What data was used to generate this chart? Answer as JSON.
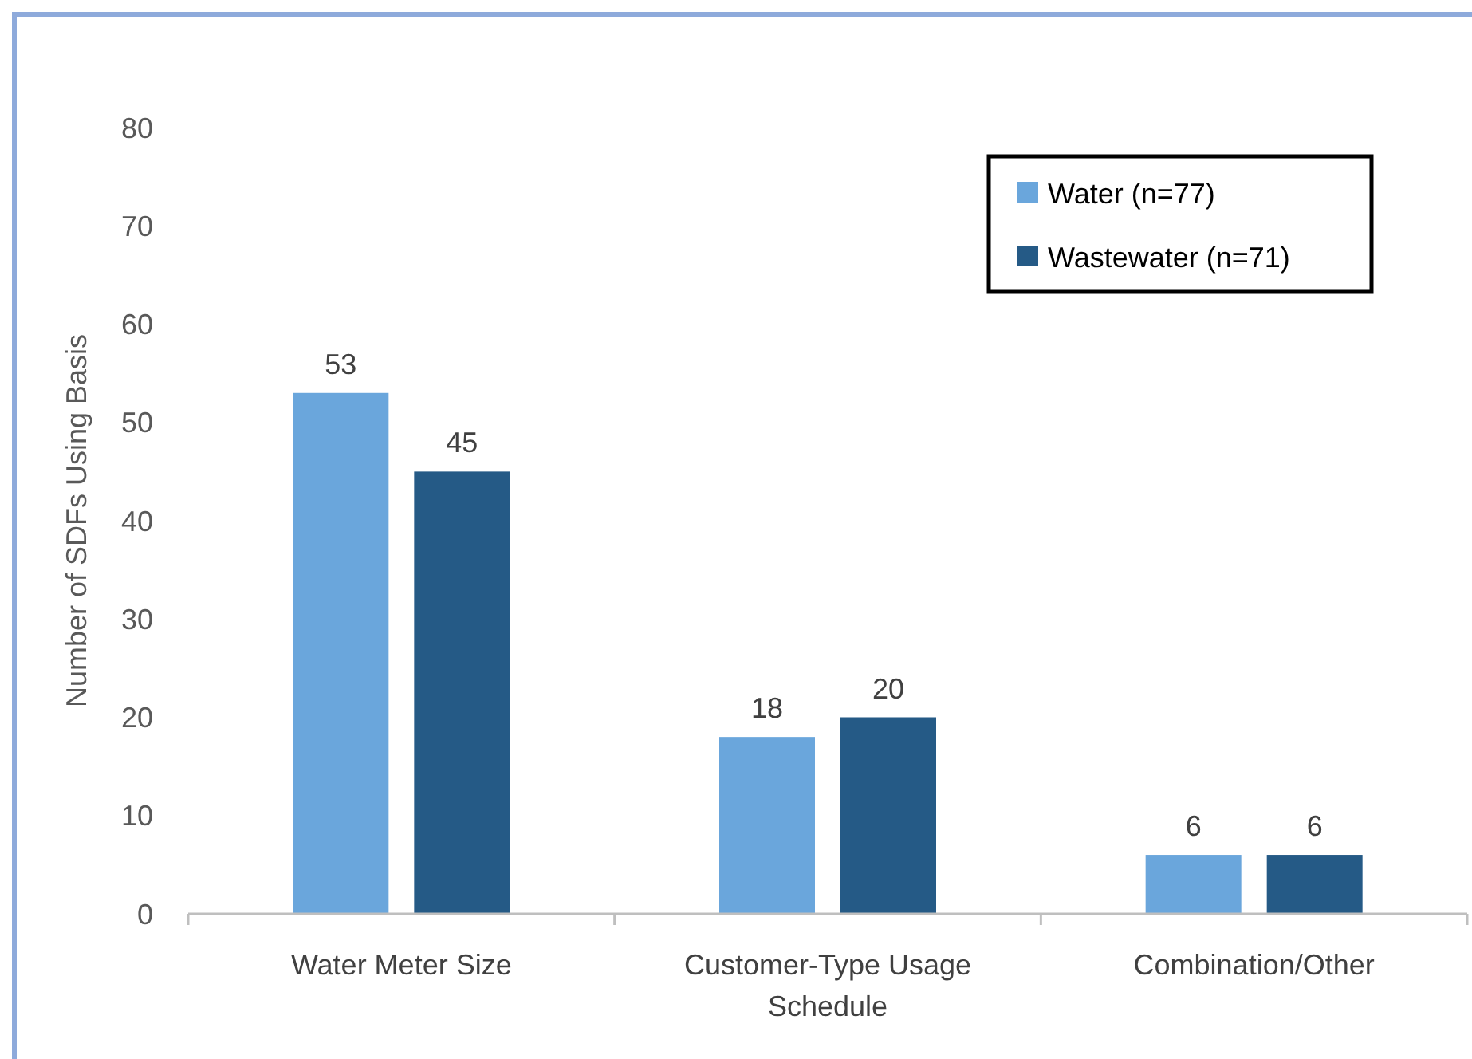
{
  "chart_data": {
    "type": "bar",
    "ylabel": "Number of SDFs Using Basis",
    "categories": [
      "Water Meter Size",
      "Customer-Type Usage Schedule",
      "Combination/Other"
    ],
    "series": [
      {
        "name": "Water (n=77)",
        "color": "#6aa6dc",
        "values": [
          53,
          18,
          6
        ]
      },
      {
        "name": "Wastewater (n=71)",
        "color": "#255a86",
        "values": [
          45,
          20,
          6
        ]
      }
    ],
    "ylim": [
      0,
      80
    ],
    "yticks": [
      0,
      10,
      20,
      30,
      40,
      50,
      60,
      70,
      80
    ],
    "grid": false,
    "legend": "top right",
    "data_labels": true
  }
}
